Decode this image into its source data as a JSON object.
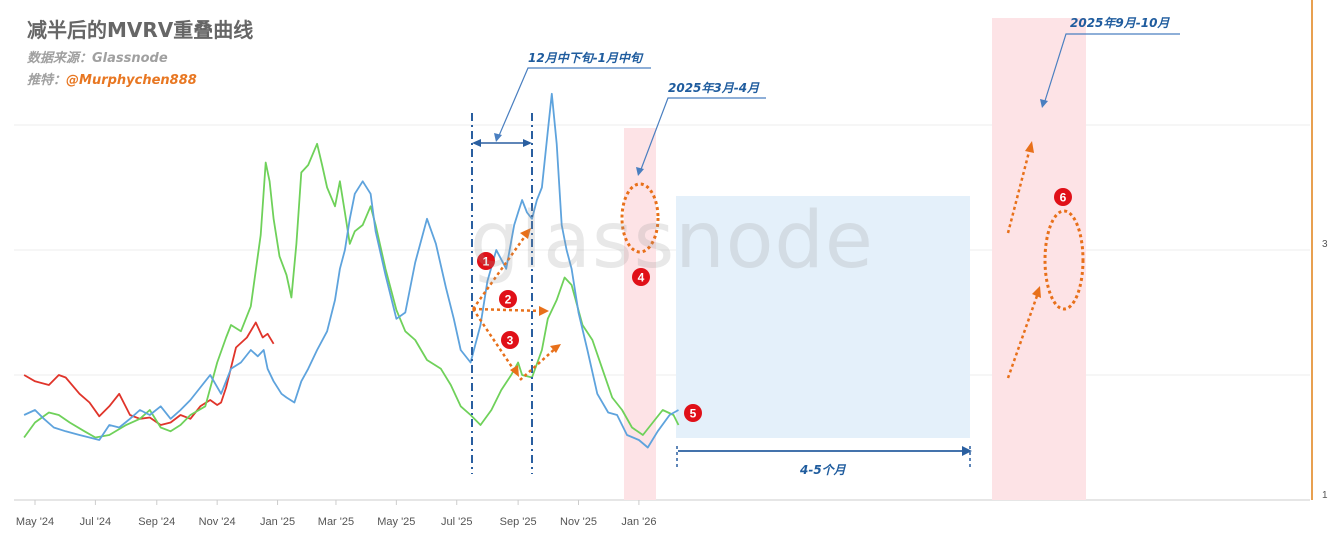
{
  "header": {
    "title": "减半后的MVRV重叠曲线",
    "source_label": "数据来源：Glassnode",
    "twitter_label": "推特：",
    "twitter_handle": "@Murphychen888"
  },
  "watermark": "glassnode",
  "annotations": {
    "a1": "12月中下旬-1月中旬",
    "a2": "2025年3月-4月",
    "a3": "2025年9月-10月",
    "a4": "4-5个月",
    "n1": "1",
    "n2": "2",
    "n3": "3",
    "n4": "4",
    "n5": "5",
    "n6": "6"
  },
  "colors": {
    "red": "#e0342a",
    "green": "#6fd15a",
    "blue": "#5ea3dd",
    "navy": "#2a5fa0",
    "orange": "#e8701a",
    "pink": "#fde3e6",
    "lightblue": "#e4f0fa",
    "badge": "#e01018"
  },
  "chart_data": {
    "type": "line",
    "x_ticks": [
      "May '24",
      "Jul '24",
      "Sep '24",
      "Nov '24",
      "Jan '25",
      "Mar '25",
      "May '25",
      "Jul '25",
      "Sep '25",
      "Nov '25",
      "Jan '26"
    ],
    "y_ticks": [
      "3",
      "1"
    ],
    "series": [
      {
        "color": "red",
        "points": [
          [
            "2024-04-20",
            2.0
          ],
          [
            "2024-05-01",
            1.95
          ],
          [
            "2024-05-15",
            1.92
          ],
          [
            "2024-05-25",
            2.0
          ],
          [
            "2024-06-01",
            1.98
          ],
          [
            "2024-06-15",
            1.85
          ],
          [
            "2024-06-25",
            1.78
          ],
          [
            "2024-07-05",
            1.67
          ],
          [
            "2024-07-15",
            1.75
          ],
          [
            "2024-07-25",
            1.85
          ],
          [
            "2024-08-05",
            1.68
          ],
          [
            "2024-08-15",
            1.65
          ],
          [
            "2024-08-25",
            1.66
          ],
          [
            "2024-09-05",
            1.6
          ],
          [
            "2024-09-15",
            1.62
          ],
          [
            "2024-09-25",
            1.68
          ],
          [
            "2024-10-05",
            1.65
          ],
          [
            "2024-10-15",
            1.75
          ],
          [
            "2024-10-25",
            1.8
          ],
          [
            "2024-11-01",
            1.76
          ],
          [
            "2024-11-05",
            1.78
          ],
          [
            "2024-11-10",
            1.9
          ],
          [
            "2024-11-20",
            2.22
          ],
          [
            "2024-12-01",
            2.3
          ],
          [
            "2024-12-10",
            2.42
          ],
          [
            "2024-12-17",
            2.3
          ],
          [
            "2024-12-22",
            2.33
          ],
          [
            "2024-12-28",
            2.25
          ]
        ]
      },
      {
        "color": "green",
        "points": [
          [
            "2024-04-20",
            1.5
          ],
          [
            "2024-05-01",
            1.62
          ],
          [
            "2024-05-15",
            1.7
          ],
          [
            "2024-05-25",
            1.68
          ],
          [
            "2024-06-05",
            1.62
          ],
          [
            "2024-06-20",
            1.55
          ],
          [
            "2024-07-01",
            1.5
          ],
          [
            "2024-07-15",
            1.52
          ],
          [
            "2024-08-01",
            1.6
          ],
          [
            "2024-08-15",
            1.65
          ],
          [
            "2024-08-25",
            1.72
          ],
          [
            "2024-09-05",
            1.58
          ],
          [
            "2024-09-15",
            1.55
          ],
          [
            "2024-09-25",
            1.6
          ],
          [
            "2024-10-05",
            1.68
          ],
          [
            "2024-10-20",
            1.75
          ],
          [
            "2024-11-01",
            2.1
          ],
          [
            "2024-11-10",
            2.3
          ],
          [
            "2024-11-15",
            2.4
          ],
          [
            "2024-11-25",
            2.35
          ],
          [
            "2024-12-05",
            2.55
          ],
          [
            "2024-12-15",
            3.12
          ],
          [
            "2024-12-20",
            3.7
          ],
          [
            "2024-12-24",
            3.55
          ],
          [
            "2024-12-28",
            3.25
          ],
          [
            "2025-01-03",
            2.95
          ],
          [
            "2025-01-10",
            2.8
          ],
          [
            "2025-01-15",
            2.62
          ],
          [
            "2025-01-20",
            3.05
          ],
          [
            "2025-01-25",
            3.62
          ],
          [
            "2025-02-01",
            3.68
          ],
          [
            "2025-02-10",
            3.85
          ],
          [
            "2025-02-15",
            3.68
          ],
          [
            "2025-02-20",
            3.5
          ],
          [
            "2025-02-28",
            3.35
          ],
          [
            "2025-03-05",
            3.55
          ],
          [
            "2025-03-10",
            3.3
          ],
          [
            "2025-03-15",
            3.05
          ],
          [
            "2025-03-20",
            3.15
          ],
          [
            "2025-03-28",
            3.2
          ],
          [
            "2025-04-05",
            3.35
          ],
          [
            "2025-04-10",
            3.2
          ],
          [
            "2025-04-20",
            2.85
          ],
          [
            "2025-05-01",
            2.52
          ],
          [
            "2025-05-10",
            2.35
          ],
          [
            "2025-05-20",
            2.28
          ],
          [
            "2025-06-01",
            2.12
          ],
          [
            "2025-06-15",
            2.05
          ],
          [
            "2025-06-25",
            1.92
          ],
          [
            "2025-07-05",
            1.75
          ],
          [
            "2025-07-15",
            1.68
          ],
          [
            "2025-07-25",
            1.6
          ],
          [
            "2025-08-05",
            1.72
          ],
          [
            "2025-08-15",
            1.88
          ],
          [
            "2025-08-25",
            2.0
          ],
          [
            "2025-09-01",
            2.1
          ],
          [
            "2025-09-05",
            2.0
          ],
          [
            "2025-09-15",
            1.98
          ],
          [
            "2025-09-25",
            2.2
          ],
          [
            "2025-10-01",
            2.45
          ],
          [
            "2025-10-10",
            2.6
          ],
          [
            "2025-10-18",
            2.78
          ],
          [
            "2025-10-25",
            2.72
          ],
          [
            "2025-11-05",
            2.4
          ],
          [
            "2025-11-15",
            2.28
          ],
          [
            "2025-11-25",
            2.05
          ],
          [
            "2025-12-05",
            1.82
          ],
          [
            "2025-12-15",
            1.72
          ],
          [
            "2025-12-25",
            1.58
          ],
          [
            "2026-01-05",
            1.52
          ],
          [
            "2026-01-15",
            1.62
          ],
          [
            "2026-01-25",
            1.72
          ],
          [
            "2026-02-05",
            1.68
          ],
          [
            "2026-02-10",
            1.6
          ]
        ]
      },
      {
        "color": "blue",
        "points": [
          [
            "2024-04-20",
            1.68
          ],
          [
            "2024-05-01",
            1.72
          ],
          [
            "2024-05-10",
            1.65
          ],
          [
            "2024-05-20",
            1.58
          ],
          [
            "2024-06-01",
            1.55
          ],
          [
            "2024-06-15",
            1.52
          ],
          [
            "2024-06-25",
            1.5
          ],
          [
            "2024-07-05",
            1.48
          ],
          [
            "2024-07-15",
            1.6
          ],
          [
            "2024-07-25",
            1.58
          ],
          [
            "2024-08-05",
            1.65
          ],
          [
            "2024-08-15",
            1.72
          ],
          [
            "2024-08-25",
            1.68
          ],
          [
            "2024-09-05",
            1.75
          ],
          [
            "2024-09-15",
            1.65
          ],
          [
            "2024-09-25",
            1.72
          ],
          [
            "2024-10-05",
            1.8
          ],
          [
            "2024-10-15",
            1.9
          ],
          [
            "2024-10-25",
            2.0
          ],
          [
            "2024-11-05",
            1.85
          ],
          [
            "2024-11-15",
            2.05
          ],
          [
            "2024-11-25",
            2.1
          ],
          [
            "2024-12-05",
            2.2
          ],
          [
            "2024-12-12",
            2.15
          ],
          [
            "2024-12-18",
            2.2
          ],
          [
            "2024-12-22",
            2.05
          ],
          [
            "2024-12-28",
            1.95
          ],
          [
            "2025-01-05",
            1.85
          ],
          [
            "2025-01-10",
            1.82
          ],
          [
            "2025-01-18",
            1.78
          ],
          [
            "2025-01-25",
            1.95
          ],
          [
            "2025-02-01",
            2.05
          ],
          [
            "2025-02-10",
            2.2
          ],
          [
            "2025-02-20",
            2.35
          ],
          [
            "2025-02-28",
            2.6
          ],
          [
            "2025-03-05",
            2.85
          ],
          [
            "2025-03-10",
            3.0
          ],
          [
            "2025-03-15",
            3.25
          ],
          [
            "2025-03-20",
            3.45
          ],
          [
            "2025-03-28",
            3.55
          ],
          [
            "2025-04-05",
            3.45
          ],
          [
            "2025-04-10",
            3.15
          ],
          [
            "2025-04-20",
            2.8
          ],
          [
            "2025-05-01",
            2.45
          ],
          [
            "2025-05-10",
            2.5
          ],
          [
            "2025-05-20",
            2.9
          ],
          [
            "2025-06-01",
            3.25
          ],
          [
            "2025-06-10",
            3.05
          ],
          [
            "2025-06-20",
            2.7
          ],
          [
            "2025-06-28",
            2.45
          ],
          [
            "2025-07-05",
            2.2
          ],
          [
            "2025-07-15",
            2.1
          ],
          [
            "2025-07-25",
            2.4
          ],
          [
            "2025-08-01",
            2.75
          ],
          [
            "2025-08-10",
            3.0
          ],
          [
            "2025-08-20",
            2.85
          ],
          [
            "2025-08-28",
            3.2
          ],
          [
            "2025-09-01",
            3.3
          ],
          [
            "2025-09-05",
            3.4
          ],
          [
            "2025-09-10",
            3.3
          ],
          [
            "2025-09-15",
            3.25
          ],
          [
            "2025-09-20",
            3.4
          ],
          [
            "2025-09-25",
            3.5
          ],
          [
            "2025-10-01",
            3.95
          ],
          [
            "2025-10-05",
            4.25
          ],
          [
            "2025-10-10",
            3.85
          ],
          [
            "2025-10-15",
            3.2
          ],
          [
            "2025-10-20",
            3.0
          ],
          [
            "2025-10-25",
            2.85
          ],
          [
            "2025-11-01",
            2.5
          ],
          [
            "2025-11-10",
            2.2
          ],
          [
            "2025-11-20",
            1.85
          ],
          [
            "2025-12-01",
            1.7
          ],
          [
            "2025-12-10",
            1.68
          ],
          [
            "2025-12-20",
            1.52
          ],
          [
            "2026-01-01",
            1.48
          ],
          [
            "2026-01-10",
            1.42
          ],
          [
            "2026-01-20",
            1.55
          ],
          [
            "2026-02-01",
            1.68
          ],
          [
            "2026-02-10",
            1.72
          ]
        ]
      }
    ]
  }
}
